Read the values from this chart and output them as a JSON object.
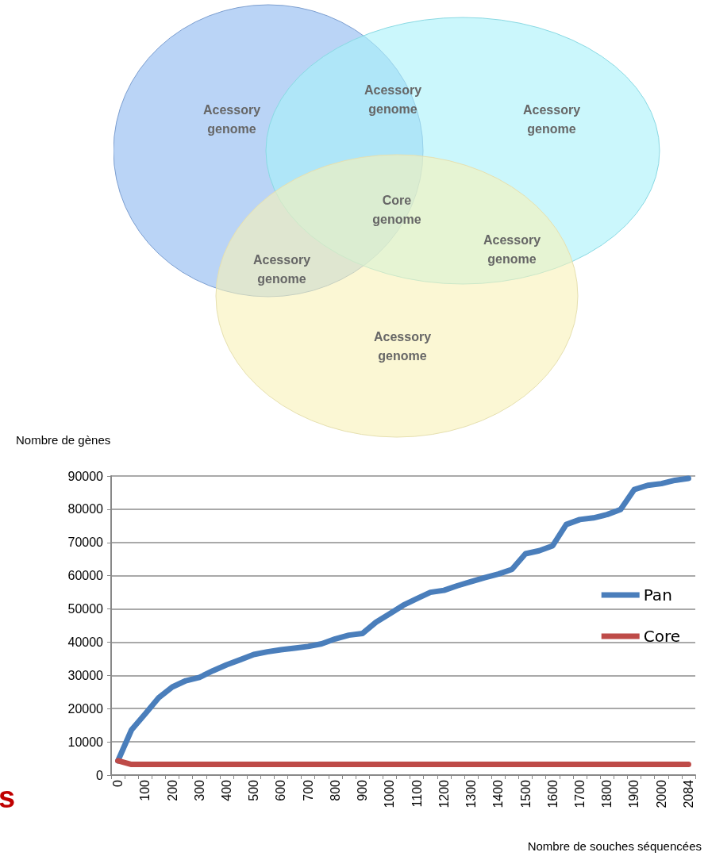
{
  "chart_data": {
    "type": "line",
    "xlabel": "Nombre de souches séquencées",
    "ylabel": "Nombre de gènes",
    "categories": [
      "0",
      null,
      "100",
      null,
      "200",
      null,
      "300",
      null,
      "400",
      null,
      "500",
      null,
      "600",
      null,
      "700",
      null,
      "800",
      null,
      "900",
      null,
      "1000",
      null,
      "1100",
      null,
      "1200",
      null,
      "1300",
      null,
      "1400",
      null,
      "1500",
      null,
      "1600",
      null,
      "1700",
      null,
      "1800",
      null,
      "1900",
      null,
      "2000",
      null,
      "2084"
    ],
    "series": [
      {
        "name": "Pan",
        "color": "#4a7ebb",
        "values": [
          4300,
          13600,
          18400,
          23300,
          26500,
          28400,
          29400,
          31400,
          33200,
          34700,
          36300,
          37100,
          37700,
          38200,
          38700,
          39500,
          41000,
          42100,
          42600,
          46000,
          48500,
          51100,
          53100,
          55000,
          55600,
          57000,
          58200,
          59400,
          60500,
          61900,
          66600,
          67500,
          69000,
          75400,
          76900,
          77400,
          78400,
          79900,
          85900,
          87200,
          87700,
          88700,
          89300
        ]
      },
      {
        "name": "Core",
        "color": "#be4b48",
        "values": [
          4300,
          3200,
          3200,
          3200,
          3200,
          3200,
          3200,
          3200,
          3200,
          3200,
          3200,
          3200,
          3200,
          3200,
          3200,
          3200,
          3200,
          3200,
          3200,
          3200,
          3200,
          3200,
          3200,
          3200,
          3200,
          3200,
          3200,
          3200,
          3200,
          3200,
          3200,
          3200,
          3200,
          3200,
          3200,
          3200,
          3200,
          3200,
          3200,
          3200,
          3200,
          3200,
          3200
        ]
      }
    ],
    "ylim": [
      0,
      90000
    ],
    "yticks": [
      0,
      10000,
      20000,
      30000,
      40000,
      50000,
      60000,
      70000,
      80000,
      90000
    ],
    "grid": "y",
    "legend": "right",
    "marker": "none",
    "line_style": "solid",
    "annotations": [
      "Acessory\ngenome",
      "Acessory\ngenome",
      "Acessory\ngenome",
      "Core\ngenome",
      "Acessory\ngenome",
      "Acessory\ngenome",
      "Acessory\ngenome",
      "s"
    ]
  }
}
